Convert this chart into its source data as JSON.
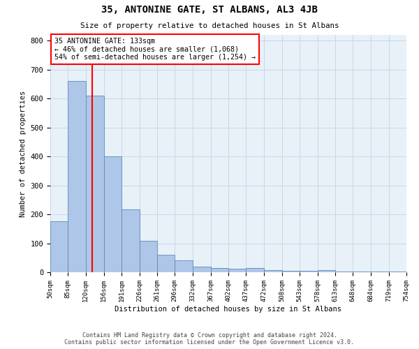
{
  "title": "35, ANTONINE GATE, ST ALBANS, AL3 4JB",
  "subtitle": "Size of property relative to detached houses in St Albans",
  "xlabel": "Distribution of detached houses by size in St Albans",
  "ylabel": "Number of detached properties",
  "bin_edges": [
    50,
    85,
    120,
    156,
    191,
    226,
    261,
    296,
    332,
    367,
    402,
    437,
    472,
    508,
    543,
    578,
    613,
    648,
    684,
    719,
    754
  ],
  "bar_heights": [
    175,
    660,
    610,
    400,
    217,
    108,
    60,
    42,
    20,
    15,
    13,
    15,
    8,
    5,
    5,
    7,
    3,
    2,
    2,
    3
  ],
  "bar_color": "#aec6e8",
  "bar_edge_color": "#5a8db5",
  "property_size": 133,
  "annotation_line1": "35 ANTONINE GATE: 133sqm",
  "annotation_line2": "← 46% of detached houses are smaller (1,068)",
  "annotation_line3": "54% of semi-detached houses are larger (1,254) →",
  "annotation_box_color": "white",
  "annotation_box_edge_color": "red",
  "vline_color": "red",
  "ylim": [
    0,
    820
  ],
  "yticks": [
    0,
    100,
    200,
    300,
    400,
    500,
    600,
    700,
    800
  ],
  "grid_color": "#c8d8e8",
  "background_color": "#e8f0f8",
  "footer_line1": "Contains HM Land Registry data © Crown copyright and database right 2024.",
  "footer_line2": "Contains public sector information licensed under the Open Government Licence v3.0."
}
